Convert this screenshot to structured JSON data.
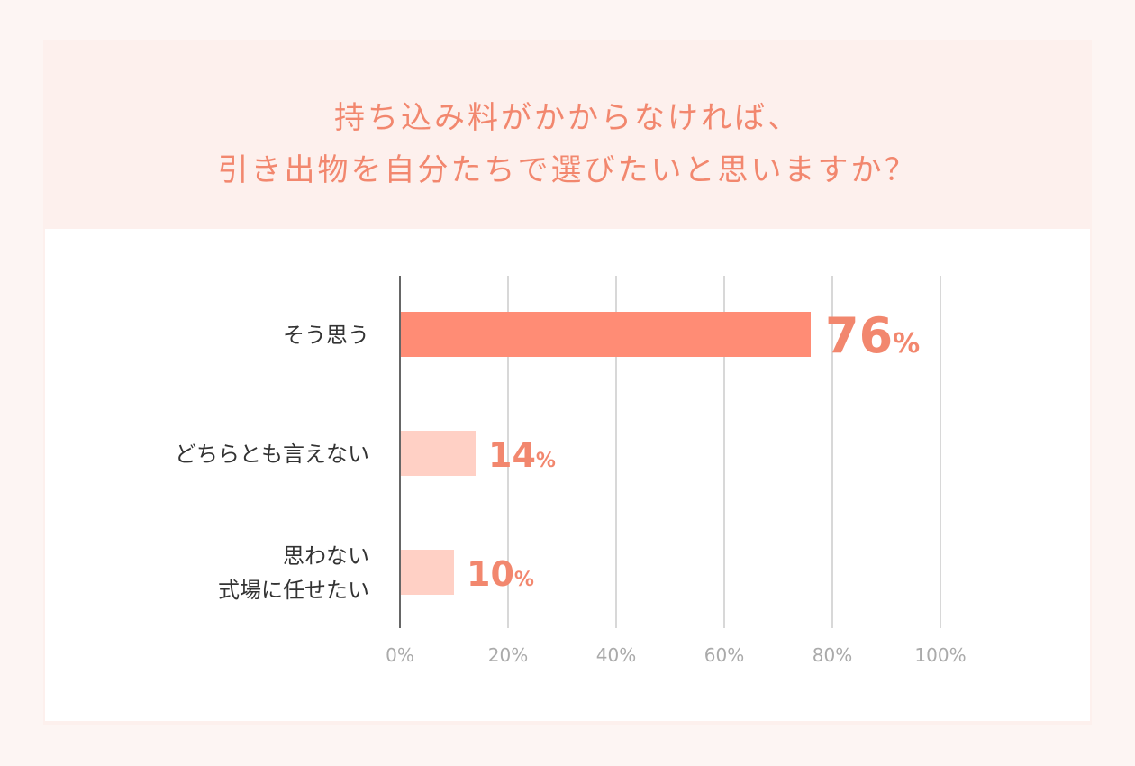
{
  "title_lines": [
    "持ち込み料がかからなければ、",
    "引き出物を自分たちで選びたいと思いますか？"
  ],
  "colors": {
    "highlight_bar": "#ff8c75",
    "normal_bar": "#ffd0c5",
    "accent_text": "#f2876e"
  },
  "chart_data": {
    "type": "bar",
    "orientation": "horizontal",
    "categories": [
      [
        "そう思う"
      ],
      [
        "どちらとも言えない"
      ],
      [
        "思わない",
        "式場に任せたい"
      ]
    ],
    "values": [
      76,
      14,
      10
    ],
    "value_labels": [
      {
        "num": "76",
        "unit": "%"
      },
      {
        "num": "14",
        "unit": "%"
      },
      {
        "num": "10",
        "unit": "%"
      }
    ],
    "xlim": [
      0,
      100
    ],
    "xticks": [
      0,
      20,
      40,
      60,
      80,
      100
    ],
    "xtick_labels": [
      "0%",
      "20%",
      "40%",
      "60%",
      "80%",
      "100%"
    ],
    "grid": true
  }
}
